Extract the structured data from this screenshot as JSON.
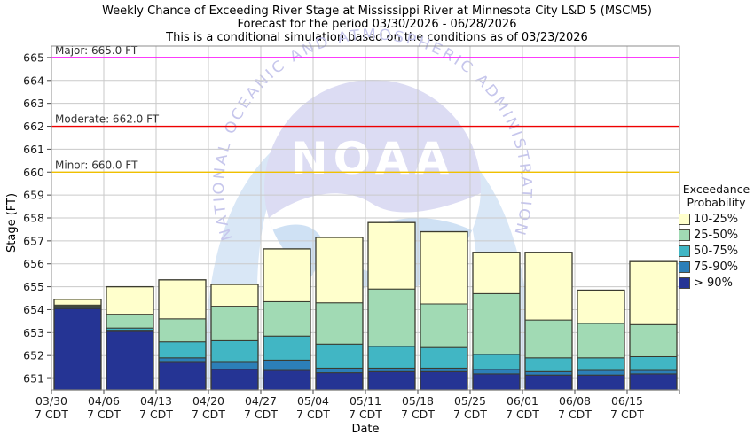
{
  "title": {
    "line1": "Weekly Chance of Exceeding River Stage at Mississippi River at Minnesota City L&D 5 (MSCM5)",
    "line2": "Forecast for the period 03/30/2026 - 06/28/2026",
    "line3": "This is a conditional simulation based on the conditions as of 03/23/2026"
  },
  "axes": {
    "y_label": "Stage (FT)",
    "x_label": "Date",
    "y_ticks": [
      665,
      664,
      663,
      662,
      661,
      660,
      659,
      658,
      657,
      656,
      655,
      654,
      653,
      652,
      651
    ],
    "y_min": 650.5,
    "y_max": 665.5
  },
  "flood_lines": [
    {
      "name": "Major",
      "label": "Major: 665.0 FT",
      "value": 665.0,
      "color": "#ff00ff"
    },
    {
      "name": "Moderate",
      "label": "Moderate: 662.0 FT",
      "value": 662.0,
      "color": "#ee0000"
    },
    {
      "name": "Minor",
      "label": "Minor: 660.0 FT",
      "value": 660.0,
      "color": "#f0c000"
    }
  ],
  "legend": {
    "title_lines": [
      "Exceedance",
      "Probability"
    ],
    "entries": [
      {
        "label": "10-25%",
        "color": "#ffffcc"
      },
      {
        "label": "25-50%",
        "color": "#a1dab4"
      },
      {
        "label": "50-75%",
        "color": "#41b6c4"
      },
      {
        "label": "75-90%",
        "color": "#2c7fb8"
      },
      {
        "label": "> 90%",
        "color": "#253494"
      }
    ]
  },
  "chart_data": {
    "type": "bar",
    "stacked": true,
    "title": "Weekly Chance of Exceeding River Stage at Mississippi River at Minnesota City L&D 5 (MSCM5)",
    "xlabel": "Date",
    "ylabel": "Stage (FT)",
    "ylim": [
      650.5,
      665.5
    ],
    "grid": true,
    "categories": [
      "03/30",
      "04/06",
      "04/13",
      "04/20",
      "04/27",
      "05/04",
      "05/11",
      "05/18",
      "05/25",
      "06/01",
      "06/08",
      "06/15"
    ],
    "tick_sublabel": "7 CDT",
    "base_stage": 650.5,
    "bar_outline": "#3b3b2f",
    "series_note": "values are cumulative segment top stages in FT for each weekly bar",
    "series": [
      {
        "name": "> 90%",
        "color": "#253494",
        "tops": [
          654.05,
          653.05,
          651.7,
          651.4,
          651.35,
          651.25,
          651.3,
          651.3,
          651.2,
          651.15,
          651.15,
          651.2
        ]
      },
      {
        "name": "75-90%",
        "color": "#2c7fb8",
        "tops": [
          654.1,
          653.1,
          651.9,
          651.7,
          651.8,
          651.45,
          651.45,
          651.45,
          651.4,
          651.3,
          651.35,
          651.35
        ]
      },
      {
        "name": "50-75%",
        "color": "#41b6c4",
        "tops": [
          654.15,
          653.2,
          652.6,
          652.65,
          652.85,
          652.5,
          652.4,
          652.35,
          652.05,
          651.9,
          651.9,
          651.95
        ]
      },
      {
        "name": "25-50%",
        "color": "#a1dab4",
        "tops": [
          654.2,
          653.8,
          653.6,
          654.15,
          654.35,
          654.3,
          654.9,
          654.25,
          654.7,
          653.55,
          653.4,
          653.35
        ]
      },
      {
        "name": "10-25%",
        "color": "#ffffcc",
        "tops": [
          654.45,
          655.0,
          655.3,
          655.1,
          656.65,
          657.15,
          657.8,
          657.4,
          656.5,
          656.5,
          654.85,
          656.1
        ]
      }
    ]
  },
  "watermark": {
    "text": "NOAA",
    "arc_text": "NATIONAL OCEANIC AND ATMOSPHERIC ADMINISTRATION"
  }
}
